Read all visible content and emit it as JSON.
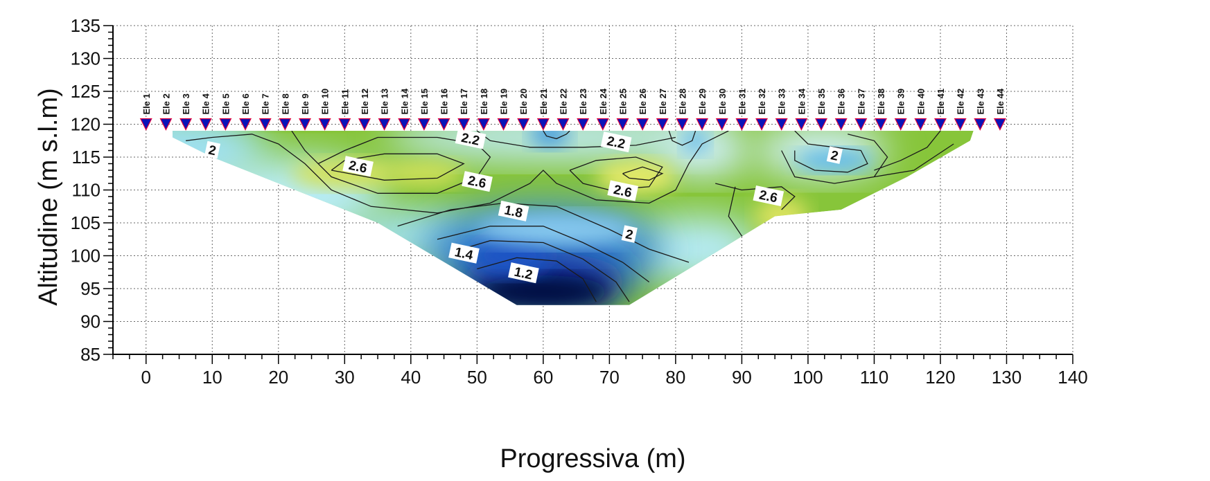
{
  "chart_data": {
    "type": "heatmap",
    "xlabel": "Progressiva (m)",
    "ylabel": "Altitudine (m s.l.m)",
    "xlim": [
      -5,
      140
    ],
    "ylim": [
      85,
      135
    ],
    "x_ticks": [
      0,
      10,
      20,
      30,
      40,
      50,
      60,
      70,
      80,
      90,
      100,
      110,
      120,
      130,
      140
    ],
    "y_ticks": [
      85,
      90,
      95,
      100,
      105,
      110,
      115,
      120,
      125,
      130,
      135
    ],
    "grid": true,
    "electrodes": {
      "altitude": 120,
      "spacing": 3,
      "labels": [
        "Ele 1",
        "Ele 2",
        "Ele 3",
        "Ele 4",
        "Ele 5",
        "Ele 6",
        "Ele 7",
        "Ele 8",
        "Ele 9",
        "Ele 10",
        "Ele 11",
        "Ele 12",
        "Ele 13",
        "Ele 14",
        "Ele 15",
        "Ele 16",
        "Ele 17",
        "Ele 18",
        "Ele 19",
        "Ele 20",
        "Ele 21",
        "Ele 22",
        "Ele 23",
        "Ele 24",
        "Ele 25",
        "Ele 26",
        "Ele 27",
        "Ele 28",
        "Ele 29",
        "Ele 30",
        "Ele 31",
        "Ele 32",
        "Ele 33",
        "Ele 34",
        "Ele 35",
        "Ele 36",
        "Ele 37",
        "Ele 38",
        "Ele 39",
        "Ele 40",
        "Ele 41",
        "Ele 42",
        "Ele 43",
        "Ele 44"
      ],
      "x": [
        0,
        3,
        6,
        9,
        12,
        15,
        18,
        21,
        24,
        27,
        30,
        33,
        36,
        39,
        42,
        45,
        48,
        51,
        54,
        57,
        60,
        63,
        66,
        69,
        72,
        75,
        78,
        81,
        84,
        87,
        90,
        93,
        96,
        99,
        102,
        105,
        108,
        111,
        114,
        117,
        120,
        123,
        126,
        129
      ]
    },
    "section_outline": [
      [
        4,
        119
      ],
      [
        125,
        119
      ],
      [
        124.5,
        117.5
      ],
      [
        115,
        112
      ],
      [
        105,
        107
      ],
      [
        95,
        106
      ],
      [
        82,
        98
      ],
      [
        73,
        92.5
      ],
      [
        56,
        92.5
      ],
      [
        35,
        105
      ],
      [
        10,
        115
      ],
      [
        4,
        118
      ]
    ],
    "contour_labels": [
      {
        "text": "2",
        "x": 10,
        "y": 116
      },
      {
        "text": "2.2",
        "x": 49,
        "y": 117.7
      },
      {
        "text": "2.2",
        "x": 71,
        "y": 117.2
      },
      {
        "text": "2.6",
        "x": 32,
        "y": 113.5
      },
      {
        "text": "2.6",
        "x": 50,
        "y": 111.2
      },
      {
        "text": "2.6",
        "x": 72,
        "y": 109.8
      },
      {
        "text": "2.6",
        "x": 94,
        "y": 109
      },
      {
        "text": "2",
        "x": 104,
        "y": 115.2
      },
      {
        "text": "1.8",
        "x": 55.5,
        "y": 106.7
      },
      {
        "text": "2",
        "x": 73,
        "y": 103.2
      },
      {
        "text": "1.4",
        "x": 48,
        "y": 100.3
      },
      {
        "text": "1.2",
        "x": 57,
        "y": 97.3
      }
    ]
  }
}
